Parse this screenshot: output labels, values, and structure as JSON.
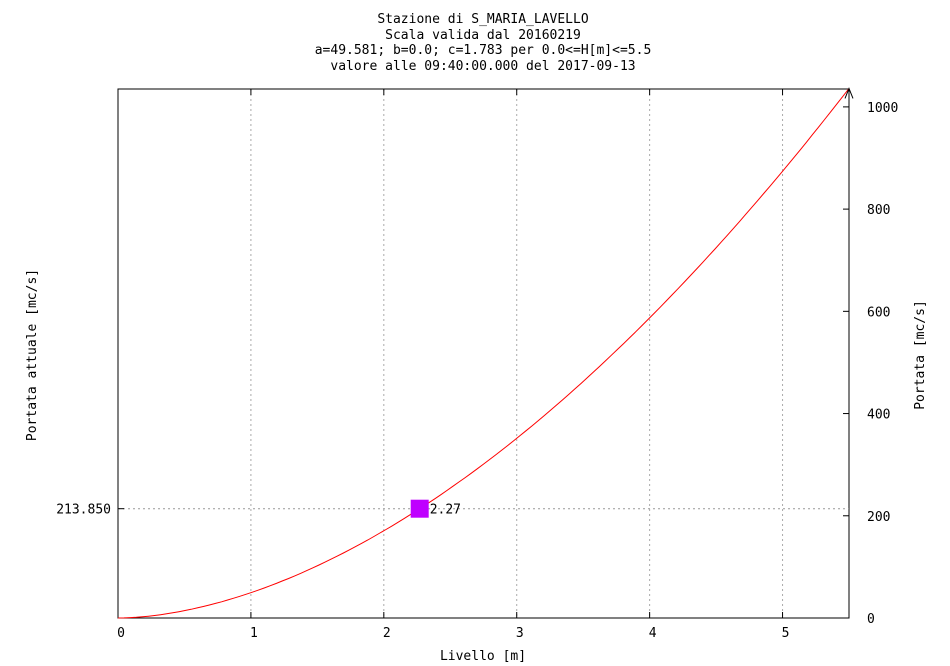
{
  "chart_data": {
    "type": "line",
    "title_lines": [
      "Stazione di S_MARIA_LAVELLO",
      "Scala valida dal 20160219",
      "a=49.581; b=0.0; c=1.783 per 0.0<=H[m]<=5.5",
      "valore alle 09:40:00.000 del 2017-09-13"
    ],
    "xlabel": "Livello [m]",
    "ylabel_left": "Portata attuale [mc/s]",
    "ylabel_right": "Portata [mc/s]",
    "xlim": [
      0,
      5.5
    ],
    "ylim": [
      0,
      1035
    ],
    "x_ticks": [
      "0",
      "1",
      "2",
      "3",
      "4",
      "5"
    ],
    "y_right_ticks": [
      "0",
      "200",
      "400",
      "600",
      "800",
      "1000"
    ],
    "grid": true,
    "formula": {
      "a": 49.581,
      "b": 0.0,
      "c": 1.783,
      "hmin": 0.0,
      "hmax": 5.5
    },
    "series": [
      {
        "color": "#ff0000",
        "x": [
          0,
          0.25,
          0.5,
          0.75,
          1.0,
          1.25,
          1.5,
          1.75,
          2.0,
          2.25,
          2.5,
          2.75,
          3.0,
          3.25,
          3.5,
          3.75,
          4.0,
          4.25,
          4.5,
          4.75,
          5.0,
          5.25,
          5.5
        ],
        "y": [
          0,
          4.2,
          14.4,
          29.8,
          49.6,
          73.5,
          101.3,
          132.8,
          170.9,
          209.4,
          253.0,
          300.2,
          350.9,
          405.2,
          462.8,
          523.9,
          588.3,
          655.8,
          726.6,
          800.4,
          877.3,
          957.2,
          1040.0
        ]
      }
    ],
    "current_point": {
      "x": 2.27,
      "y": 213.85,
      "value_label": "213.850",
      "point_label": "2.27",
      "color": "#bf00ff"
    }
  }
}
